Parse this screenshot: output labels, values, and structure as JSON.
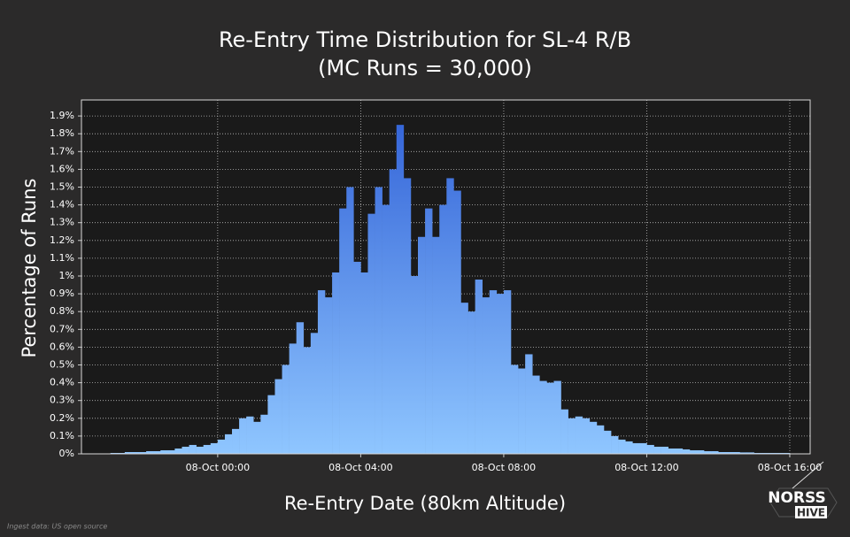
{
  "chart_data": {
    "type": "histogram",
    "title": "Re-Entry Time Distribution for SL-4 R/B",
    "subtitle": "(MC Runs = 30,000)",
    "xlabel": "Re-Entry Date (80km Altitude)",
    "ylabel": "Percentage of Runs",
    "footnote": "Ingest data: US open source",
    "logo": [
      "NORSS",
      "HIVE"
    ],
    "bins": [
      -3,
      -2.8,
      -2.6,
      -2.4,
      -2.2,
      -2,
      -1.8,
      -1.6,
      -1.4,
      -1.2,
      -1,
      -0.8,
      -0.6,
      -0.4,
      -0.2,
      0,
      0.2,
      0.4,
      0.6,
      0.8,
      1,
      1.2,
      1.4,
      1.6,
      1.8,
      2,
      2.2,
      2.4,
      2.6,
      2.8,
      3,
      3.2,
      3.4,
      3.6,
      3.8,
      4,
      4.2,
      4.4,
      4.6,
      4.8,
      5,
      5.2,
      5.4,
      5.6,
      5.8,
      6,
      6.2,
      6.4,
      6.6,
      6.8,
      7,
      7.2,
      7.4,
      7.6,
      7.8,
      8,
      8.2,
      8.4,
      8.6,
      8.8,
      9,
      9.2,
      9.4,
      9.6,
      9.8,
      10,
      10.2,
      10.4,
      10.6,
      10.8,
      11,
      11.2,
      11.4,
      11.6,
      11.8,
      12,
      12.2,
      12.4,
      12.6,
      12.8,
      13,
      13.2,
      13.4,
      13.6,
      13.8,
      14,
      14.2,
      14.4,
      14.6,
      14.8,
      15,
      15.2,
      15.4,
      15.6,
      15.8,
      16
    ],
    "values": [
      0.005,
      0.005,
      0.01,
      0.01,
      0.01,
      0.015,
      0.015,
      0.02,
      0.02,
      0.03,
      0.04,
      0.05,
      0.04,
      0.05,
      0.06,
      0.08,
      0.11,
      0.14,
      0.2,
      0.21,
      0.18,
      0.22,
      0.33,
      0.42,
      0.5,
      0.62,
      0.74,
      0.6,
      0.68,
      0.92,
      0.88,
      1.02,
      1.38,
      1.5,
      1.08,
      1.02,
      1.35,
      1.5,
      1.4,
      1.6,
      1.85,
      1.55,
      1.0,
      1.22,
      1.38,
      1.22,
      1.4,
      1.55,
      1.48,
      0.85,
      0.8,
      0.98,
      0.88,
      0.92,
      0.9,
      0.92,
      0.5,
      0.48,
      0.56,
      0.44,
      0.41,
      0.4,
      0.41,
      0.25,
      0.2,
      0.21,
      0.2,
      0.18,
      0.16,
      0.13,
      0.1,
      0.08,
      0.07,
      0.06,
      0.06,
      0.05,
      0.04,
      0.04,
      0.03,
      0.03,
      0.025,
      0.02,
      0.02,
      0.015,
      0.015,
      0.01,
      0.01,
      0.01,
      0.008,
      0.008,
      0.005,
      0.005,
      0.005,
      0.005,
      0.005
    ],
    "color_top": "#2f5fd6",
    "color_bottom": "#8fc6ff",
    "xlim": [
      -3.81,
      16.57
    ],
    "ylim": [
      0,
      1.99
    ],
    "xticks": [
      {
        "value": 0,
        "label": "08-Oct 00:00"
      },
      {
        "value": 4,
        "label": "08-Oct 04:00"
      },
      {
        "value": 8,
        "label": "08-Oct 08:00"
      },
      {
        "value": 12,
        "label": "08-Oct 12:00"
      },
      {
        "value": 16,
        "label": "08-Oct 16:00"
      }
    ],
    "yticks": [
      {
        "value": 0,
        "label": "0%"
      },
      {
        "value": 0.1,
        "label": "0.1%"
      },
      {
        "value": 0.2,
        "label": "0.2%"
      },
      {
        "value": 0.3,
        "label": "0.3%"
      },
      {
        "value": 0.4,
        "label": "0.4%"
      },
      {
        "value": 0.5,
        "label": "0.5%"
      },
      {
        "value": 0.6,
        "label": "0.6%"
      },
      {
        "value": 0.7,
        "label": "0.7%"
      },
      {
        "value": 0.8,
        "label": "0.8%"
      },
      {
        "value": 0.9,
        "label": "0.9%"
      },
      {
        "value": 1,
        "label": "1%"
      },
      {
        "value": 1.1,
        "label": "1.1%"
      },
      {
        "value": 1.2,
        "label": "1.2%"
      },
      {
        "value": 1.3,
        "label": "1.3%"
      },
      {
        "value": 1.4,
        "label": "1.4%"
      },
      {
        "value": 1.5,
        "label": "1.5%"
      },
      {
        "value": 1.6,
        "label": "1.6%"
      },
      {
        "value": 1.7,
        "label": "1.7%"
      },
      {
        "value": 1.8,
        "label": "1.8%"
      },
      {
        "value": 1.9,
        "label": "1.9%"
      }
    ],
    "grid": true
  }
}
